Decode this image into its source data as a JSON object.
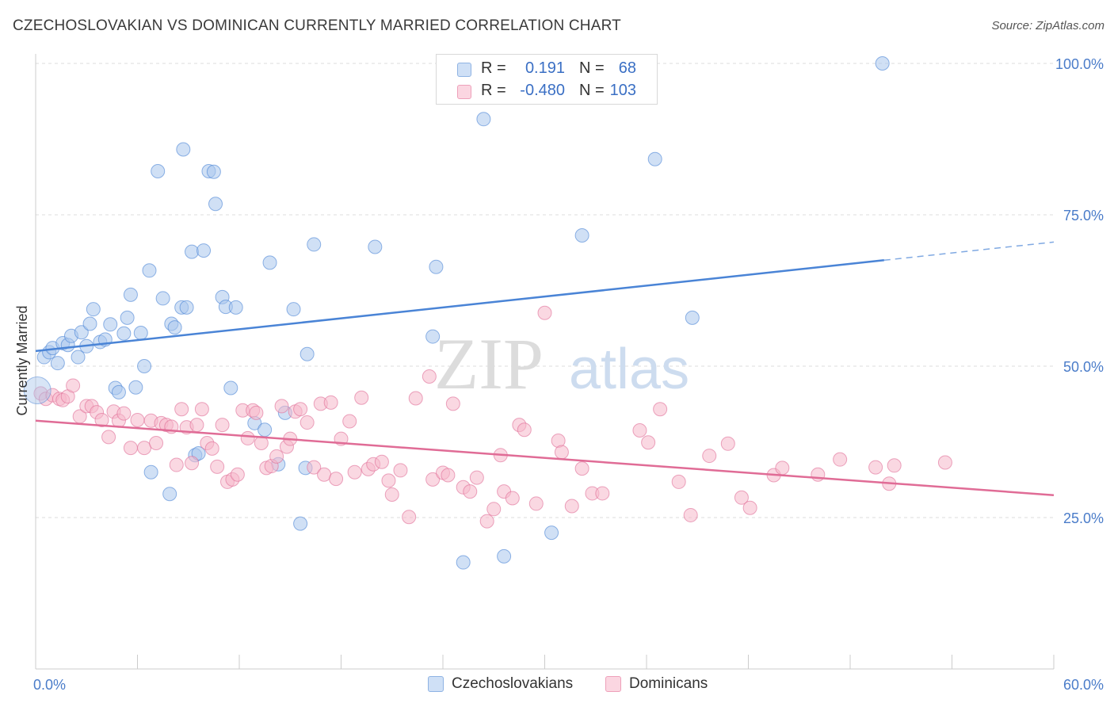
{
  "header": {
    "title": "CZECHOSLOVAKIAN VS DOMINICAN CURRENTLY MARRIED CORRELATION CHART",
    "source": "Source: ZipAtlas.com"
  },
  "watermark": {
    "part1": "ZIP",
    "part2": "atlas"
  },
  "legend": {
    "rows": [
      {
        "r_label": "R =",
        "r_value": "0.191",
        "n_label": "N =",
        "n_value": "68",
        "color": "#a9c6ec"
      },
      {
        "r_label": "R =",
        "r_value": "-0.480",
        "n_label": "N =",
        "n_value": "103",
        "color": "#f5b8cb"
      }
    ]
  },
  "bottom_legend": {
    "items": [
      {
        "label": "Czechoslovakians",
        "color": "#a9c6ec"
      },
      {
        "label": "Dominicans",
        "color": "#f5b8cb"
      }
    ]
  },
  "chart_data": {
    "type": "scatter",
    "xlabel": "",
    "ylabel": "Currently Married",
    "xlim": [
      0,
      60
    ],
    "ylim": [
      0,
      100
    ],
    "x_tick_labels": [
      {
        "value": 0,
        "label": "0.0%"
      },
      {
        "value": 60,
        "label": "60.0%"
      }
    ],
    "y_tick_labels": [
      {
        "value": 25,
        "label": "25.0%"
      },
      {
        "value": 50,
        "label": "50.0%"
      },
      {
        "value": 75,
        "label": "75.0%"
      },
      {
        "value": 100,
        "label": "100.0%"
      }
    ],
    "grid": true,
    "series": [
      {
        "name": "Czechoslovakians",
        "color": "#4a84d6",
        "fill": "#a9c6ec",
        "trend": {
          "x0": 0,
          "y0": 52.5,
          "x1": 50,
          "y1": 67.5,
          "extend_to_x": 60,
          "extend_to_y": 70.5
        },
        "points": [
          [
            0.5,
            51.5
          ],
          [
            0.8,
            52.3
          ],
          [
            1.0,
            53.0
          ],
          [
            1.3,
            50.5
          ],
          [
            1.6,
            53.8
          ],
          [
            1.9,
            53.5
          ],
          [
            2.1,
            55.0
          ],
          [
            2.5,
            51.5
          ],
          [
            2.7,
            55.6
          ],
          [
            3.0,
            53.3
          ],
          [
            3.2,
            57.0
          ],
          [
            3.4,
            59.4
          ],
          [
            3.8,
            54.0
          ],
          [
            4.1,
            54.4
          ],
          [
            4.4,
            56.9
          ],
          [
            4.7,
            46.4
          ],
          [
            4.9,
            45.7
          ],
          [
            5.2,
            55.4
          ],
          [
            5.4,
            58.0
          ],
          [
            5.6,
            61.8
          ],
          [
            5.9,
            46.5
          ],
          [
            6.2,
            55.5
          ],
          [
            6.4,
            50.0
          ],
          [
            6.8,
            32.5
          ],
          [
            6.7,
            65.8
          ],
          [
            7.2,
            82.2
          ],
          [
            7.5,
            61.2
          ],
          [
            7.9,
            28.9
          ],
          [
            8.0,
            57.0
          ],
          [
            8.2,
            56.4
          ],
          [
            8.6,
            59.7
          ],
          [
            8.7,
            85.8
          ],
          [
            8.9,
            59.7
          ],
          [
            9.2,
            68.9
          ],
          [
            9.4,
            35.3
          ],
          [
            9.6,
            35.6
          ],
          [
            9.9,
            69.1
          ],
          [
            10.2,
            82.2
          ],
          [
            10.5,
            82.1
          ],
          [
            10.6,
            76.8
          ],
          [
            11.0,
            61.4
          ],
          [
            11.2,
            59.8
          ],
          [
            11.5,
            46.4
          ],
          [
            11.8,
            59.7
          ],
          [
            12.9,
            40.6
          ],
          [
            13.5,
            39.5
          ],
          [
            13.8,
            67.1
          ],
          [
            14.3,
            33.8
          ],
          [
            14.7,
            42.3
          ],
          [
            15.2,
            59.4
          ],
          [
            15.6,
            24.0
          ],
          [
            15.9,
            33.2
          ],
          [
            16.0,
            52.0
          ],
          [
            16.4,
            70.1
          ],
          [
            20.0,
            69.7
          ],
          [
            23.4,
            54.9
          ],
          [
            23.6,
            66.4
          ],
          [
            25.2,
            17.6
          ],
          [
            26.4,
            90.8
          ],
          [
            27.6,
            18.6
          ],
          [
            30.4,
            22.5
          ],
          [
            32.2,
            71.6
          ],
          [
            36.5,
            84.2
          ],
          [
            38.7,
            58.0
          ],
          [
            49.9,
            100.0
          ]
        ]
      },
      {
        "name": "Dominicans",
        "color": "#e06c96",
        "fill": "#f5b8cb",
        "trend": {
          "x0": 0,
          "y0": 41.0,
          "x1": 60,
          "y1": 28.7
        },
        "points": [
          [
            0.3,
            45.5
          ],
          [
            0.6,
            44.6
          ],
          [
            1.0,
            45.2
          ],
          [
            1.4,
            44.6
          ],
          [
            1.6,
            44.4
          ],
          [
            1.9,
            45.0
          ],
          [
            2.2,
            46.8
          ],
          [
            2.6,
            41.7
          ],
          [
            3.0,
            43.4
          ],
          [
            3.3,
            43.4
          ],
          [
            3.6,
            42.4
          ],
          [
            3.9,
            41.1
          ],
          [
            4.3,
            38.3
          ],
          [
            4.6,
            42.5
          ],
          [
            4.9,
            41.0
          ],
          [
            5.2,
            42.2
          ],
          [
            5.6,
            36.5
          ],
          [
            6.0,
            41.1
          ],
          [
            6.4,
            36.5
          ],
          [
            6.8,
            41.0
          ],
          [
            7.1,
            37.3
          ],
          [
            7.4,
            40.6
          ],
          [
            7.7,
            40.3
          ],
          [
            8.0,
            40.0
          ],
          [
            8.3,
            33.7
          ],
          [
            8.6,
            42.9
          ],
          [
            8.9,
            39.9
          ],
          [
            9.2,
            34.0
          ],
          [
            9.5,
            40.3
          ],
          [
            9.8,
            42.9
          ],
          [
            10.1,
            37.3
          ],
          [
            10.4,
            36.4
          ],
          [
            10.7,
            33.4
          ],
          [
            11.0,
            40.3
          ],
          [
            11.3,
            30.9
          ],
          [
            11.6,
            31.3
          ],
          [
            11.9,
            32.1
          ],
          [
            12.2,
            42.7
          ],
          [
            12.5,
            38.1
          ],
          [
            12.8,
            42.7
          ],
          [
            13.0,
            42.3
          ],
          [
            13.3,
            37.3
          ],
          [
            13.6,
            33.2
          ],
          [
            13.9,
            33.5
          ],
          [
            14.2,
            35.1
          ],
          [
            14.5,
            43.4
          ],
          [
            14.8,
            36.7
          ],
          [
            15.0,
            38.0
          ],
          [
            15.3,
            42.5
          ],
          [
            15.6,
            42.9
          ],
          [
            16.0,
            40.7
          ],
          [
            16.4,
            33.3
          ],
          [
            16.8,
            43.8
          ],
          [
            17.0,
            32.1
          ],
          [
            17.4,
            44.0
          ],
          [
            17.7,
            31.4
          ],
          [
            18.0,
            38.0
          ],
          [
            18.5,
            40.9
          ],
          [
            18.8,
            32.5
          ],
          [
            19.2,
            44.8
          ],
          [
            19.6,
            33.0
          ],
          [
            19.9,
            33.8
          ],
          [
            20.4,
            34.2
          ],
          [
            20.8,
            31.1
          ],
          [
            21.0,
            28.8
          ],
          [
            21.5,
            32.8
          ],
          [
            22.0,
            25.1
          ],
          [
            22.4,
            44.7
          ],
          [
            23.2,
            48.3
          ],
          [
            23.4,
            31.3
          ],
          [
            24.0,
            32.4
          ],
          [
            24.3,
            32.0
          ],
          [
            24.6,
            43.8
          ],
          [
            25.2,
            30.0
          ],
          [
            25.6,
            29.3
          ],
          [
            26.0,
            31.6
          ],
          [
            26.6,
            24.4
          ],
          [
            27.0,
            26.4
          ],
          [
            27.4,
            35.3
          ],
          [
            27.6,
            29.3
          ],
          [
            28.1,
            28.2
          ],
          [
            28.5,
            40.3
          ],
          [
            28.8,
            39.5
          ],
          [
            29.5,
            27.3
          ],
          [
            30.0,
            58.8
          ],
          [
            30.8,
            37.7
          ],
          [
            31.0,
            35.8
          ],
          [
            31.6,
            26.9
          ],
          [
            32.2,
            33.1
          ],
          [
            32.8,
            29.0
          ],
          [
            33.4,
            29.0
          ],
          [
            35.6,
            39.4
          ],
          [
            36.1,
            37.4
          ],
          [
            36.8,
            42.9
          ],
          [
            37.9,
            30.9
          ],
          [
            38.6,
            25.4
          ],
          [
            39.7,
            35.2
          ],
          [
            40.8,
            37.2
          ],
          [
            41.6,
            28.3
          ],
          [
            42.1,
            26.6
          ],
          [
            43.5,
            32.0
          ],
          [
            44.0,
            33.2
          ],
          [
            46.1,
            32.1
          ],
          [
            47.4,
            34.6
          ],
          [
            49.5,
            33.3
          ],
          [
            50.3,
            30.6
          ],
          [
            50.6,
            33.6
          ],
          [
            53.6,
            34.1
          ]
        ]
      }
    ]
  }
}
